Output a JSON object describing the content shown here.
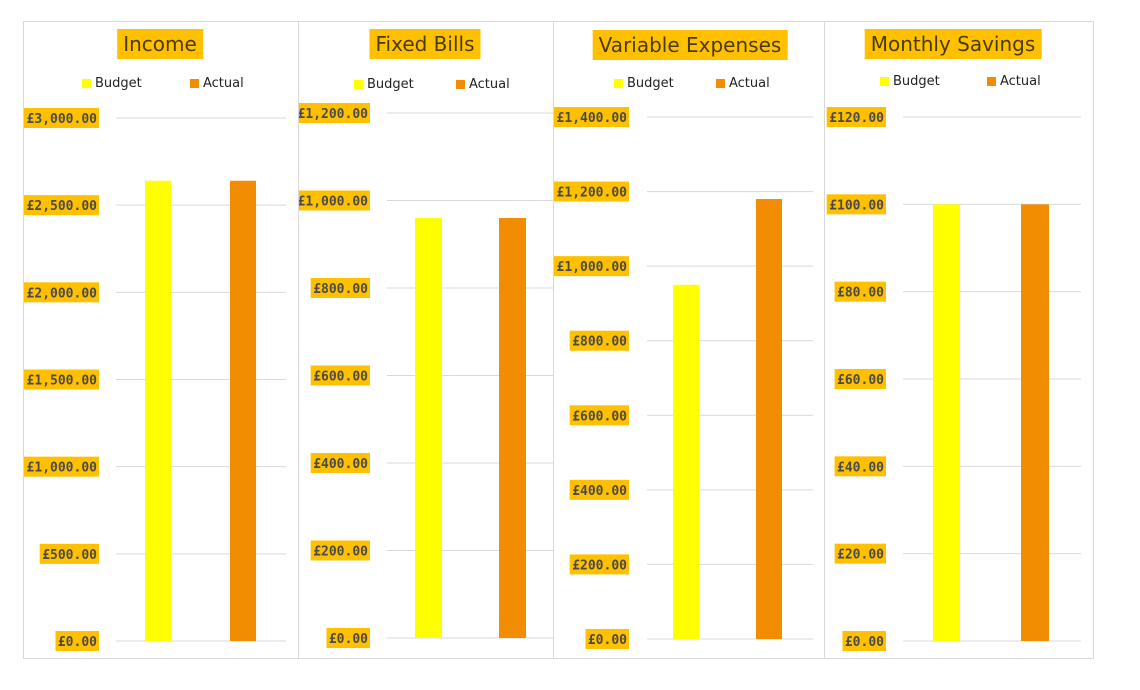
{
  "colors": {
    "budget": "#ffff00",
    "actual": "#f28c00",
    "label_bg": "#ffc000",
    "grid": "#d9d9d9"
  },
  "legend": {
    "budget_label": "Budget",
    "actual_label": "Actual"
  },
  "chart_data": [
    {
      "type": "bar",
      "title": "Income",
      "categories": [
        "Budget",
        "Actual"
      ],
      "values": [
        2640,
        2640
      ],
      "ylim": [
        0,
        3000
      ],
      "yticks": [
        "£0.00",
        "£500.00",
        "£1,000.00",
        "£1,500.00",
        "£2,000.00",
        "£2,500.00",
        "£3,000.00"
      ],
      "grid": true,
      "legend_position": "top"
    },
    {
      "type": "bar",
      "title": "Fixed Bills",
      "categories": [
        "Budget",
        "Actual"
      ],
      "values": [
        960,
        960
      ],
      "ylim": [
        0,
        1200
      ],
      "yticks": [
        "£0.00",
        "£200.00",
        "£400.00",
        "£600.00",
        "£800.00",
        "£1,000.00",
        "£1,200.00"
      ],
      "grid": true,
      "legend_position": "top"
    },
    {
      "type": "bar",
      "title": "Variable Expenses",
      "categories": [
        "Budget",
        "Actual"
      ],
      "values": [
        950,
        1180
      ],
      "ylim": [
        0,
        1400
      ],
      "yticks": [
        "£0.00",
        "£200.00",
        "£400.00",
        "£600.00",
        "£800.00",
        "£1,000.00",
        "£1,200.00",
        "£1,400.00"
      ],
      "grid": true,
      "legend_position": "top"
    },
    {
      "type": "bar",
      "title": "Monthly Savings",
      "categories": [
        "Budget",
        "Actual"
      ],
      "values": [
        100,
        100
      ],
      "ylim": [
        0,
        120
      ],
      "yticks": [
        "£0.00",
        "£20.00",
        "£40.00",
        "£60.00",
        "£80.00",
        "£100.00",
        "£120.00"
      ],
      "grid": true,
      "legend_position": "top"
    }
  ]
}
